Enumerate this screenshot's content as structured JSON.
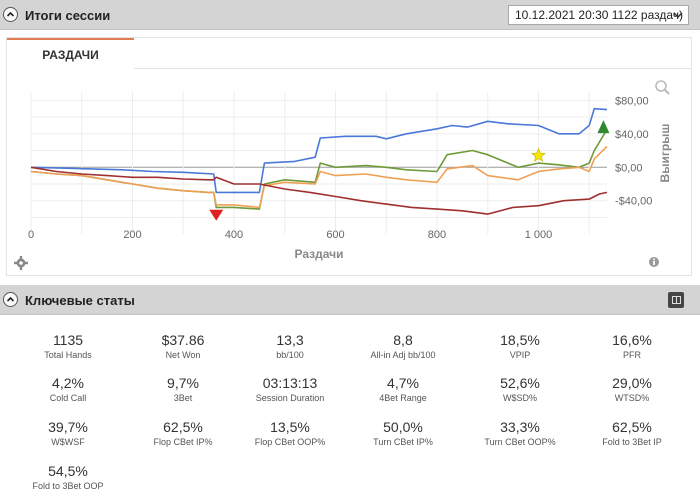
{
  "session": {
    "title": "Итоги сессии",
    "selected": "10.12.2021 20:30 1122 раздач)"
  },
  "chart_tab": "РАЗДАЧИ",
  "chart_data": {
    "type": "line",
    "xlabel": "Раздачи",
    "ylabel": "Выигрыш",
    "xlim": [
      0,
      1135
    ],
    "ylim": [
      -75,
      90
    ],
    "x_ticks": [
      0,
      200,
      400,
      600,
      800,
      1000
    ],
    "x_tick_labels": [
      "0",
      "200",
      "400",
      "600",
      "800",
      "1 000"
    ],
    "y_ticks": [
      80,
      40,
      0,
      -40
    ],
    "y_tick_labels": [
      "$80,00",
      "$40,00",
      "$0,00",
      "-$40,00"
    ],
    "grid": true,
    "series": [
      {
        "color": "#4a78d8",
        "x": [
          0,
          60,
          120,
          180,
          240,
          300,
          360,
          365,
          400,
          450,
          460,
          520,
          560,
          570,
          620,
          680,
          700,
          740,
          800,
          830,
          860,
          900,
          940,
          1000,
          1040,
          1080,
          1100,
          1110,
          1135
        ],
        "y": [
          0,
          -1,
          -2,
          -3,
          -5,
          -6,
          -8,
          -30,
          -30,
          -30,
          5,
          7,
          12,
          35,
          37,
          37,
          34,
          40,
          46,
          50,
          48,
          55,
          52,
          50,
          40,
          40,
          50,
          70,
          69
        ]
      },
      {
        "color": "#6f9a38",
        "x": [
          0,
          50,
          100,
          150,
          200,
          250,
          300,
          350,
          360,
          365,
          400,
          450,
          460,
          500,
          560,
          570,
          600,
          660,
          700,
          740,
          800,
          820,
          870,
          900,
          960,
          1000,
          1040,
          1080,
          1100,
          1110,
          1135
        ],
        "y": [
          -5,
          -8,
          -10,
          -15,
          -20,
          -25,
          -28,
          -30,
          -30,
          -48,
          -48,
          -50,
          -20,
          -15,
          -18,
          5,
          0,
          2,
          0,
          -3,
          -5,
          15,
          20,
          15,
          0,
          5,
          3,
          0,
          5,
          20,
          45
        ]
      },
      {
        "color": "#f0a055",
        "x": [
          0,
          50,
          100,
          150,
          200,
          250,
          300,
          350,
          360,
          365,
          400,
          450,
          460,
          500,
          560,
          570,
          600,
          660,
          700,
          740,
          800,
          820,
          870,
          900,
          960,
          1000,
          1040,
          1080,
          1100,
          1110,
          1135
        ],
        "y": [
          -5,
          -8,
          -10,
          -15,
          -20,
          -25,
          -28,
          -30,
          -30,
          -45,
          -45,
          -48,
          -22,
          -18,
          -20,
          -5,
          -10,
          -8,
          -12,
          -15,
          -18,
          -2,
          2,
          -10,
          -15,
          -5,
          -2,
          0,
          -5,
          10,
          25
        ]
      },
      {
        "color": "#a03030",
        "x": [
          0,
          50,
          100,
          150,
          200,
          250,
          300,
          350,
          360,
          365,
          400,
          450,
          500,
          550,
          600,
          650,
          700,
          750,
          800,
          850,
          900,
          950,
          1000,
          1050,
          1100,
          1120,
          1135
        ],
        "y": [
          0,
          -5,
          -8,
          -10,
          -12,
          -12,
          -14,
          -15,
          -15,
          -12,
          -20,
          -20,
          -26,
          -30,
          -35,
          -40,
          -44,
          -48,
          -50,
          -52,
          -56,
          -48,
          -46,
          -40,
          -38,
          -32,
          -30
        ]
      }
    ],
    "markers": [
      {
        "type": "red-triangle-down",
        "x": 365,
        "y": -58
      },
      {
        "type": "yellow-star",
        "x": 1000,
        "y": 14
      },
      {
        "type": "green-triangle-up",
        "x": 1128,
        "y": 48
      }
    ]
  },
  "stats_section": {
    "title": "Ключевые статы"
  },
  "stats": [
    {
      "value": "1135",
      "label": "Total Hands"
    },
    {
      "value": "$37.86",
      "label": "Net Won"
    },
    {
      "value": "13,3",
      "label": "bb/100"
    },
    {
      "value": "8,8",
      "label": "All-in Adj bb/100"
    },
    {
      "value": "18,5%",
      "label": "VPIP"
    },
    {
      "value": "16,6%",
      "label": "PFR"
    },
    {
      "value": "4,2%",
      "label": "Cold Call"
    },
    {
      "value": "9,7%",
      "label": "3Bet"
    },
    {
      "value": "03:13:13",
      "label": "Session Duration"
    },
    {
      "value": "4,7%",
      "label": "4Bet Range"
    },
    {
      "value": "52,6%",
      "label": "W$SD%"
    },
    {
      "value": "29,0%",
      "label": "WTSD%"
    },
    {
      "value": "39,7%",
      "label": "W$WSF"
    },
    {
      "value": "62,5%",
      "label": "Flop CBet IP%"
    },
    {
      "value": "13,5%",
      "label": "Flop CBet OOP%"
    },
    {
      "value": "50,0%",
      "label": "Turn CBet IP%"
    },
    {
      "value": "33,3%",
      "label": "Turn CBet OOP%"
    },
    {
      "value": "62,5%",
      "label": "Fold to 3Bet IP"
    },
    {
      "value": "54,5%",
      "label": "Fold to 3Bet OOP"
    }
  ]
}
